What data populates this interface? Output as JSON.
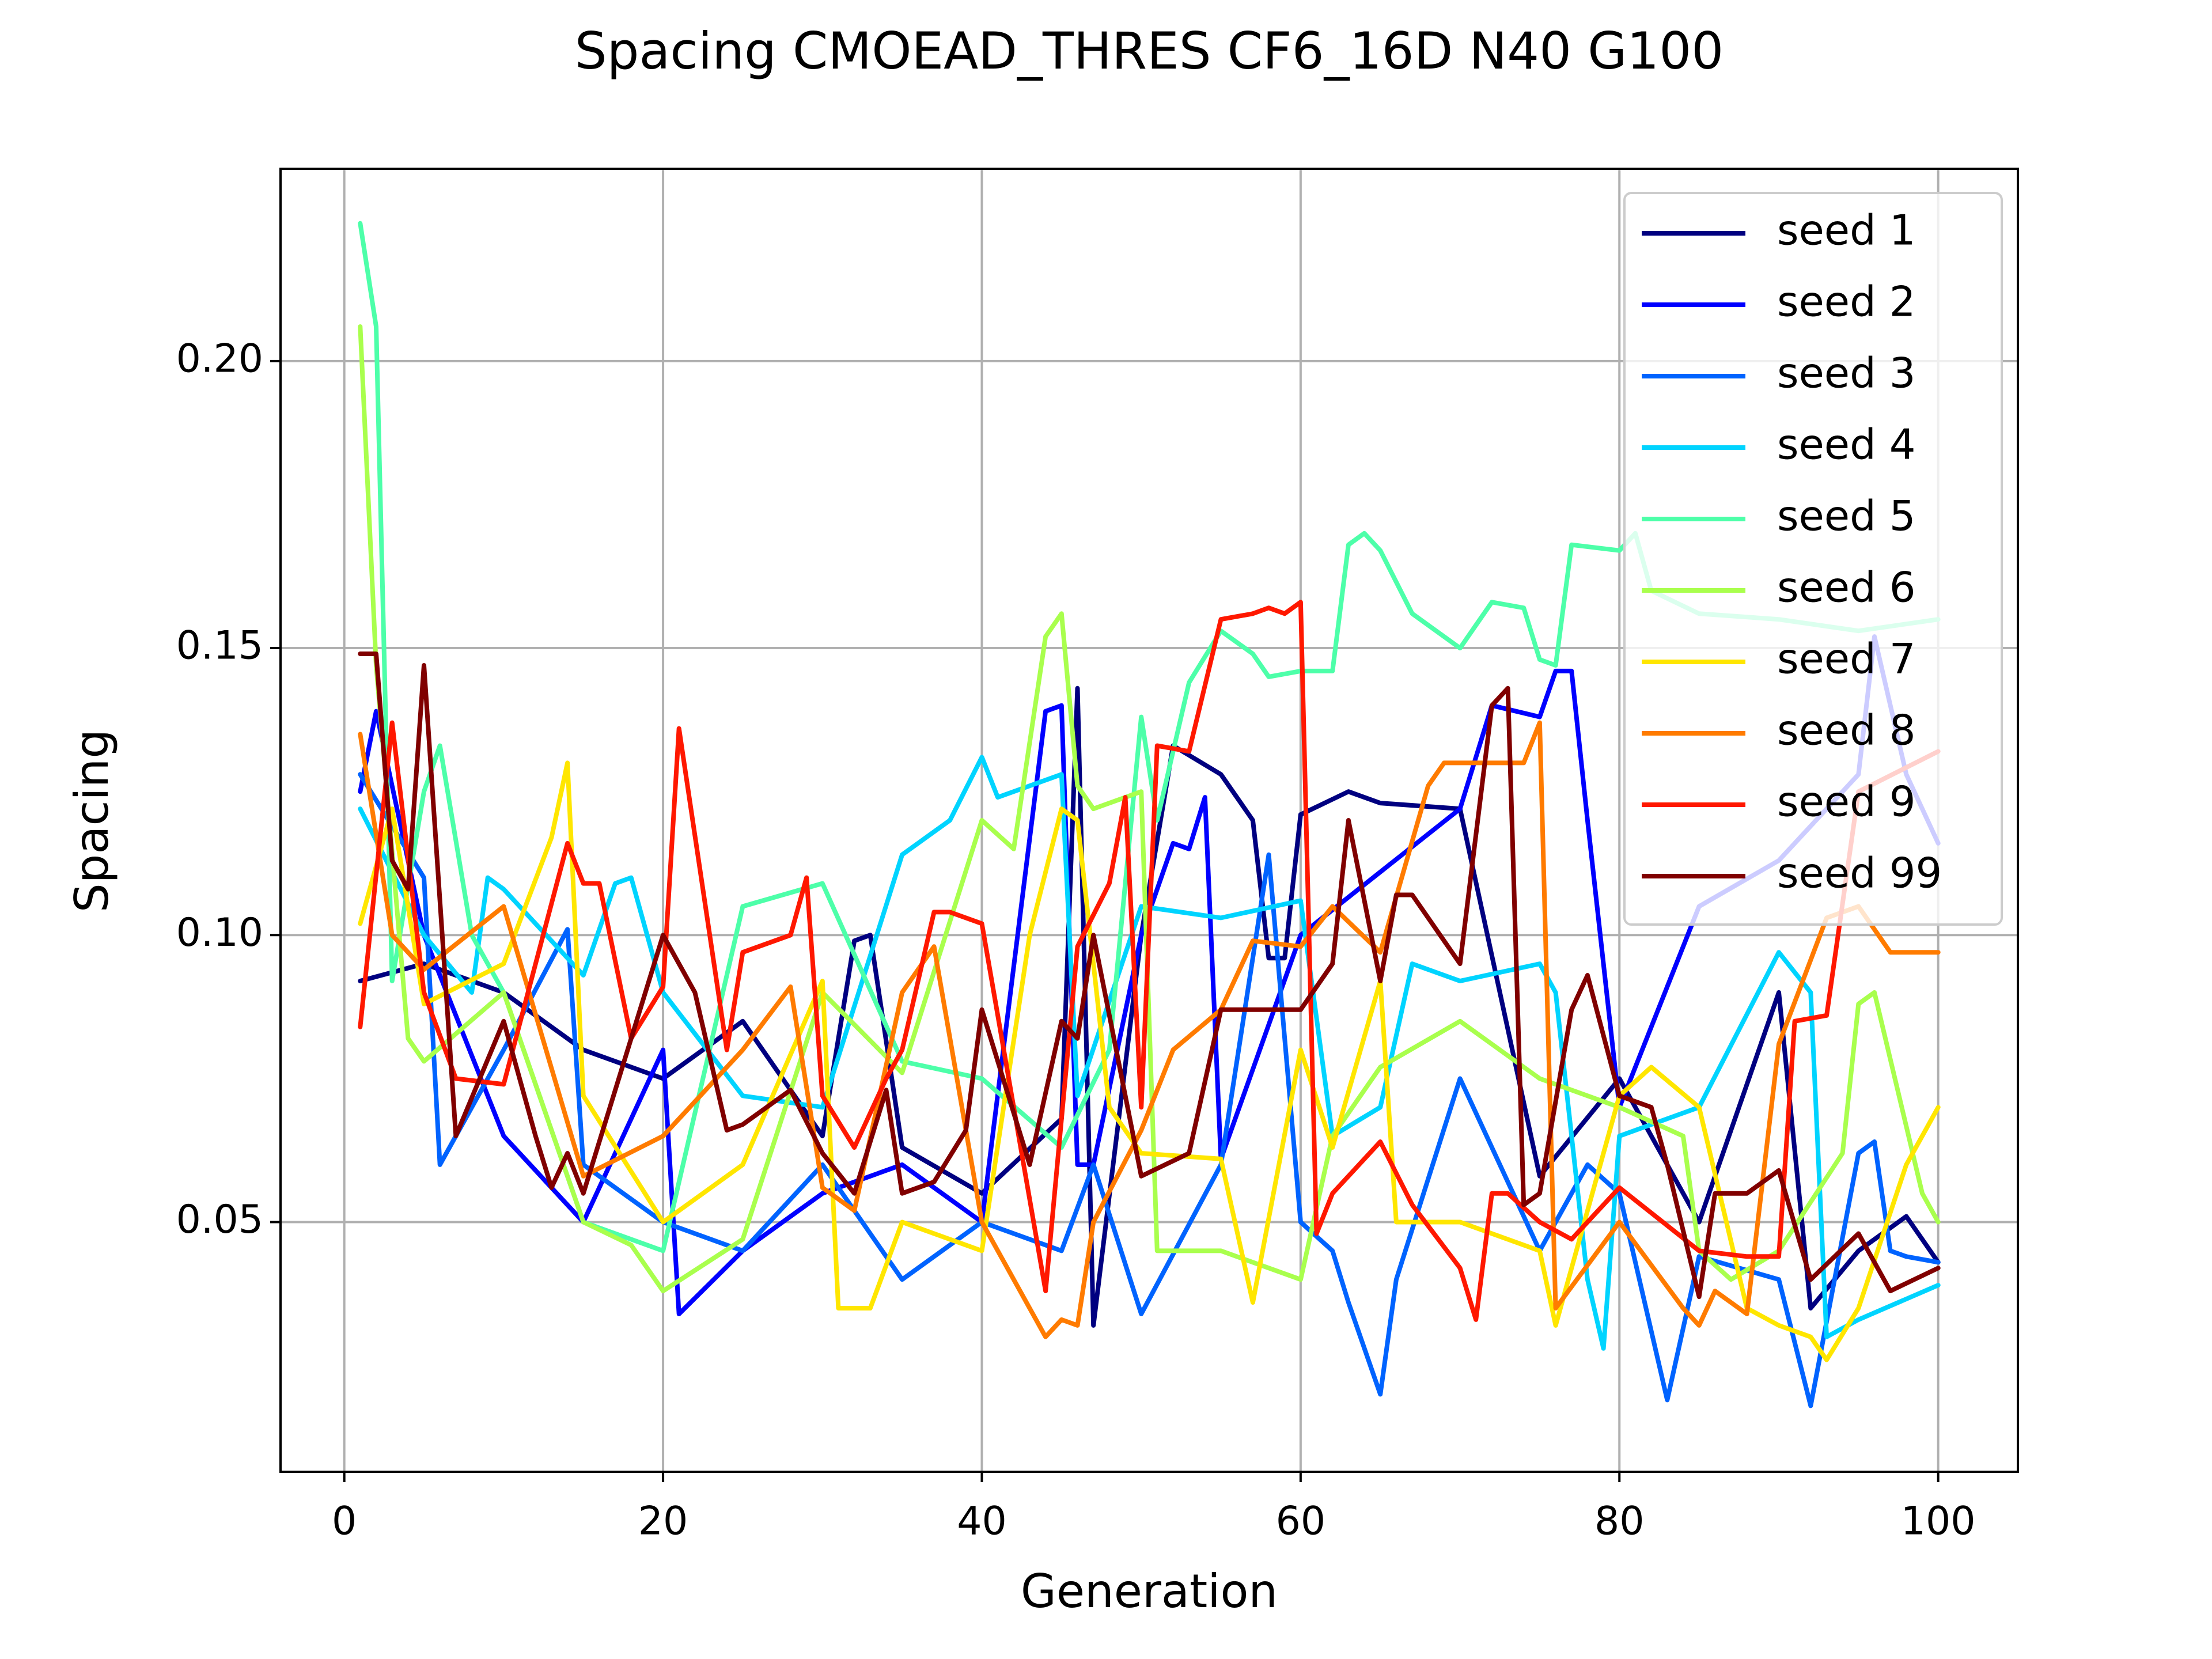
{
  "chart_data": {
    "type": "line",
    "title": "Spacing CMOEAD_THRES CF6_16D N40 G100",
    "xlabel": "Generation",
    "ylabel": "Spacing",
    "xlim": [
      -4,
      105
    ],
    "ylim": [
      0.0065,
      0.2335
    ],
    "xticks": [
      0,
      20,
      40,
      60,
      80,
      100
    ],
    "yticks": [
      0.05,
      0.1,
      0.15,
      0.2
    ],
    "xtick_labels": [
      "0",
      "20",
      "40",
      "60",
      "80",
      "100"
    ],
    "ytick_labels": [
      "0.05",
      "0.10",
      "0.15",
      "0.20"
    ],
    "grid": true,
    "legend_position": "top-right",
    "series": [
      {
        "name": "seed 1",
        "color": "#000080",
        "x": [
          1,
          5,
          10,
          15,
          20,
          25,
          30,
          32,
          33,
          35,
          40,
          45,
          46,
          47,
          50,
          52,
          55,
          57,
          58,
          59,
          60,
          63,
          65,
          70,
          75,
          80,
          85,
          90,
          92,
          95,
          98,
          100
        ],
        "y": [
          0.092,
          0.095,
          0.09,
          0.08,
          0.075,
          0.085,
          0.065,
          0.099,
          0.1,
          0.063,
          0.055,
          0.068,
          0.143,
          0.032,
          0.1,
          0.133,
          0.128,
          0.12,
          0.096,
          0.096,
          0.121,
          0.125,
          0.123,
          0.122,
          0.058,
          0.075,
          0.05,
          0.09,
          0.035,
          0.045,
          0.051,
          0.043
        ]
      },
      {
        "name": "seed 2",
        "color": "#0000ff",
        "x": [
          1,
          2,
          5,
          10,
          15,
          20,
          21,
          25,
          30,
          35,
          40,
          44,
          45,
          46,
          47,
          50,
          52,
          53,
          54,
          55,
          60,
          70,
          72,
          75,
          76,
          77,
          78,
          80,
          85,
          90,
          95,
          96,
          98,
          100
        ],
        "y": [
          0.125,
          0.139,
          0.1,
          0.065,
          0.05,
          0.08,
          0.034,
          0.045,
          0.055,
          0.06,
          0.05,
          0.139,
          0.14,
          0.06,
          0.06,
          0.1,
          0.116,
          0.115,
          0.124,
          0.061,
          0.1,
          0.122,
          0.14,
          0.138,
          0.146,
          0.146,
          0.12,
          0.07,
          0.105,
          0.113,
          0.128,
          0.152,
          0.128,
          0.116
        ]
      },
      {
        "name": "seed 3",
        "color": "#0063ff",
        "x": [
          1,
          5,
          6,
          10,
          14,
          15,
          20,
          25,
          30,
          35,
          40,
          45,
          47,
          50,
          55,
          58,
          60,
          62,
          63,
          65,
          66,
          70,
          75,
          78,
          80,
          83,
          85,
          90,
          92,
          95,
          96,
          97,
          98,
          100
        ],
        "y": [
          0.128,
          0.11,
          0.06,
          0.08,
          0.101,
          0.06,
          0.05,
          0.045,
          0.06,
          0.04,
          0.05,
          0.045,
          0.06,
          0.034,
          0.06,
          0.114,
          0.05,
          0.045,
          0.036,
          0.02,
          0.04,
          0.075,
          0.045,
          0.06,
          0.055,
          0.019,
          0.044,
          0.04,
          0.018,
          0.062,
          0.064,
          0.045,
          0.044,
          0.043
        ]
      },
      {
        "name": "seed 4",
        "color": "#00d4ff",
        "x": [
          1,
          5,
          8,
          9,
          10,
          15,
          17,
          18,
          20,
          25,
          30,
          35,
          38,
          40,
          41,
          45,
          46,
          50,
          55,
          60,
          62,
          65,
          67,
          70,
          75,
          76,
          78,
          79,
          80,
          85,
          90,
          92,
          93,
          95,
          100
        ],
        "y": [
          0.122,
          0.1,
          0.09,
          0.11,
          0.108,
          0.093,
          0.109,
          0.11,
          0.09,
          0.072,
          0.07,
          0.114,
          0.12,
          0.131,
          0.124,
          0.128,
          0.072,
          0.105,
          0.103,
          0.106,
          0.065,
          0.07,
          0.095,
          0.092,
          0.095,
          0.09,
          0.04,
          0.028,
          0.065,
          0.07,
          0.097,
          0.09,
          0.03,
          0.033,
          0.039
        ]
      },
      {
        "name": "seed 5",
        "color": "#4dffa9",
        "x": [
          1,
          2,
          3,
          5,
          6,
          8,
          10,
          15,
          20,
          25,
          30,
          35,
          40,
          45,
          48,
          50,
          51,
          53,
          55,
          57,
          58,
          60,
          62,
          63,
          64,
          65,
          67,
          70,
          72,
          74,
          75,
          76,
          77,
          80,
          81,
          82,
          85,
          90,
          95,
          100
        ],
        "y": [
          0.224,
          0.206,
          0.092,
          0.125,
          0.133,
          0.1,
          0.09,
          0.05,
          0.045,
          0.105,
          0.109,
          0.078,
          0.075,
          0.063,
          0.08,
          0.138,
          0.12,
          0.144,
          0.153,
          0.149,
          0.145,
          0.146,
          0.146,
          0.168,
          0.17,
          0.167,
          0.156,
          0.15,
          0.158,
          0.157,
          0.148,
          0.147,
          0.168,
          0.167,
          0.17,
          0.16,
          0.156,
          0.155,
          0.153,
          0.155
        ]
      },
      {
        "name": "seed 6",
        "color": "#a9ff4d",
        "x": [
          1,
          2,
          4,
          5,
          10,
          15,
          18,
          20,
          25,
          30,
          35,
          40,
          42,
          44,
          45,
          46,
          47,
          50,
          51,
          55,
          60,
          62,
          65,
          70,
          75,
          80,
          84,
          85,
          87,
          90,
          94,
          95,
          96,
          99,
          100
        ],
        "y": [
          0.206,
          0.147,
          0.082,
          0.078,
          0.09,
          0.05,
          0.046,
          0.038,
          0.047,
          0.09,
          0.076,
          0.12,
          0.115,
          0.152,
          0.156,
          0.126,
          0.122,
          0.125,
          0.045,
          0.045,
          0.04,
          0.065,
          0.077,
          0.085,
          0.075,
          0.07,
          0.065,
          0.045,
          0.04,
          0.045,
          0.062,
          0.088,
          0.09,
          0.055,
          0.05
        ]
      },
      {
        "name": "seed 7",
        "color": "#ffe600",
        "x": [
          1,
          3,
          5,
          10,
          13,
          14,
          15,
          20,
          25,
          30,
          31,
          33,
          35,
          40,
          43,
          45,
          46,
          48,
          50,
          55,
          57,
          60,
          62,
          65,
          66,
          68,
          70,
          75,
          76,
          80,
          82,
          85,
          88,
          90,
          92,
          93,
          95,
          98,
          100
        ],
        "y": [
          0.102,
          0.122,
          0.088,
          0.095,
          0.117,
          0.13,
          0.072,
          0.05,
          0.06,
          0.092,
          0.035,
          0.035,
          0.05,
          0.045,
          0.1,
          0.122,
          0.12,
          0.07,
          0.062,
          0.061,
          0.036,
          0.08,
          0.063,
          0.092,
          0.05,
          0.05,
          0.05,
          0.045,
          0.032,
          0.072,
          0.077,
          0.07,
          0.035,
          0.032,
          0.03,
          0.026,
          0.035,
          0.06,
          0.07
        ]
      },
      {
        "name": "seed 8",
        "color": "#ff7b00",
        "x": [
          1,
          3,
          5,
          10,
          15,
          20,
          25,
          28,
          30,
          32,
          35,
          37,
          40,
          44,
          45,
          46,
          47,
          50,
          52,
          55,
          57,
          60,
          62,
          65,
          68,
          69,
          70,
          73,
          74,
          75,
          76,
          80,
          84,
          85,
          86,
          88,
          90,
          93,
          95,
          97,
          100
        ],
        "y": [
          0.135,
          0.1,
          0.094,
          0.105,
          0.058,
          0.065,
          0.08,
          0.091,
          0.056,
          0.052,
          0.09,
          0.098,
          0.05,
          0.03,
          0.033,
          0.032,
          0.05,
          0.066,
          0.08,
          0.087,
          0.099,
          0.098,
          0.105,
          0.097,
          0.126,
          0.13,
          0.13,
          0.13,
          0.13,
          0.137,
          0.035,
          0.05,
          0.035,
          0.032,
          0.038,
          0.034,
          0.081,
          0.103,
          0.105,
          0.097,
          0.097
        ]
      },
      {
        "name": "seed 9",
        "color": "#ff1800",
        "x": [
          1,
          3,
          5,
          7,
          10,
          14,
          15,
          16,
          18,
          20,
          21,
          24,
          25,
          28,
          29,
          30,
          32,
          34,
          35,
          37,
          38,
          40,
          44,
          46,
          48,
          49,
          50,
          51,
          53,
          55,
          57,
          58,
          59,
          60,
          61,
          62,
          65,
          67,
          70,
          71,
          72,
          73,
          75,
          77,
          80,
          85,
          88,
          90,
          91,
          93,
          95,
          100
        ],
        "y": [
          0.084,
          0.137,
          0.09,
          0.075,
          0.074,
          0.116,
          0.109,
          0.109,
          0.082,
          0.091,
          0.136,
          0.08,
          0.097,
          0.1,
          0.11,
          0.072,
          0.063,
          0.075,
          0.08,
          0.104,
          0.104,
          0.102,
          0.038,
          0.098,
          0.109,
          0.124,
          0.07,
          0.133,
          0.132,
          0.155,
          0.156,
          0.157,
          0.156,
          0.158,
          0.048,
          0.055,
          0.064,
          0.053,
          0.042,
          0.033,
          0.055,
          0.055,
          0.05,
          0.047,
          0.056,
          0.045,
          0.044,
          0.044,
          0.085,
          0.086,
          0.125,
          0.132
        ]
      },
      {
        "name": "seed 99",
        "color": "#800000",
        "x": [
          1,
          2,
          3,
          4,
          5,
          7,
          10,
          12,
          13,
          14,
          15,
          20,
          22,
          24,
          25,
          28,
          30,
          32,
          34,
          35,
          37,
          39,
          40,
          43,
          45,
          46,
          47,
          50,
          53,
          55,
          57,
          60,
          62,
          63,
          65,
          66,
          67,
          70,
          72,
          73,
          74,
          75,
          77,
          78,
          80,
          82,
          83,
          85,
          86,
          88,
          90,
          92,
          95,
          97,
          100
        ],
        "y": [
          0.149,
          0.149,
          0.113,
          0.108,
          0.147,
          0.065,
          0.085,
          0.065,
          0.056,
          0.062,
          0.055,
          0.1,
          0.09,
          0.066,
          0.067,
          0.073,
          0.062,
          0.055,
          0.073,
          0.055,
          0.057,
          0.066,
          0.087,
          0.06,
          0.085,
          0.082,
          0.1,
          0.058,
          0.062,
          0.087,
          0.087,
          0.087,
          0.095,
          0.12,
          0.092,
          0.107,
          0.107,
          0.095,
          0.14,
          0.143,
          0.053,
          0.055,
          0.087,
          0.093,
          0.072,
          0.07,
          0.06,
          0.037,
          0.055,
          0.055,
          0.059,
          0.04,
          0.048,
          0.038,
          0.042
        ]
      }
    ]
  }
}
